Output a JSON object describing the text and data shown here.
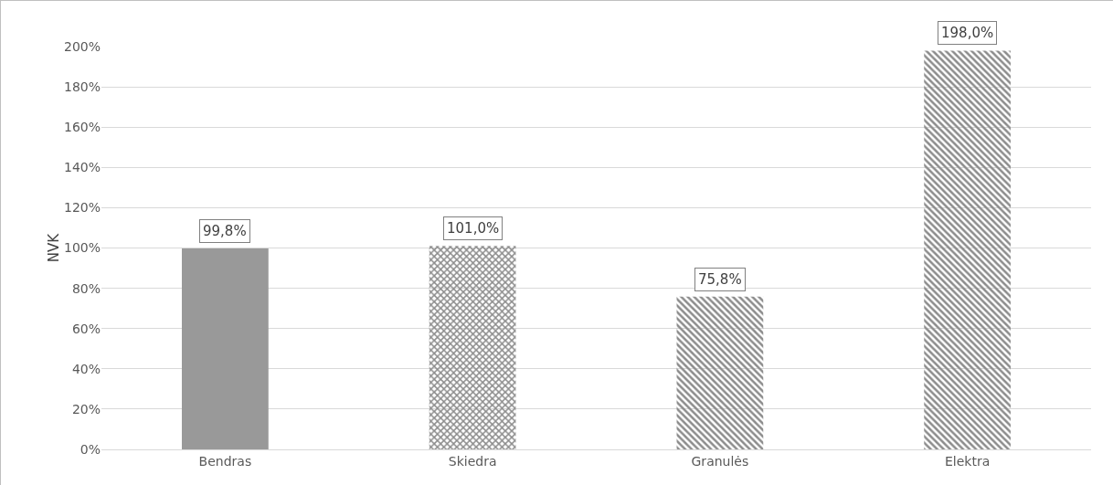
{
  "chart_data": {
    "type": "bar",
    "ylabel": "NVK",
    "categories": [
      "Bendras",
      "Skiedra",
      "Granulės",
      "Elektra"
    ],
    "values": [
      99.8,
      101.0,
      75.8,
      198.0
    ],
    "colors": [
      "#999999",
      "#8c8c8c",
      "#8c8c8c",
      "#8c8c8c"
    ],
    "value_labels": [
      "99,8%",
      "101,0%",
      "75,8%",
      "198,0%"
    ],
    "ylim": [
      0,
      200
    ],
    "yticks": [
      {
        "value": 0,
        "label": "0%"
      },
      {
        "value": 20,
        "label": "20%"
      },
      {
        "value": 40,
        "label": "40%"
      },
      {
        "value": 60,
        "label": "60%"
      },
      {
        "value": 80,
        "label": "80%"
      },
      {
        "value": 100,
        "label": "100%"
      },
      {
        "value": 120,
        "label": "120%"
      },
      {
        "value": 140,
        "label": "140%"
      },
      {
        "value": 160,
        "label": "160%"
      },
      {
        "value": 180,
        "label": "180%"
      },
      {
        "value": 200,
        "label": "200%"
      }
    ],
    "grid": "y",
    "legend": false
  }
}
